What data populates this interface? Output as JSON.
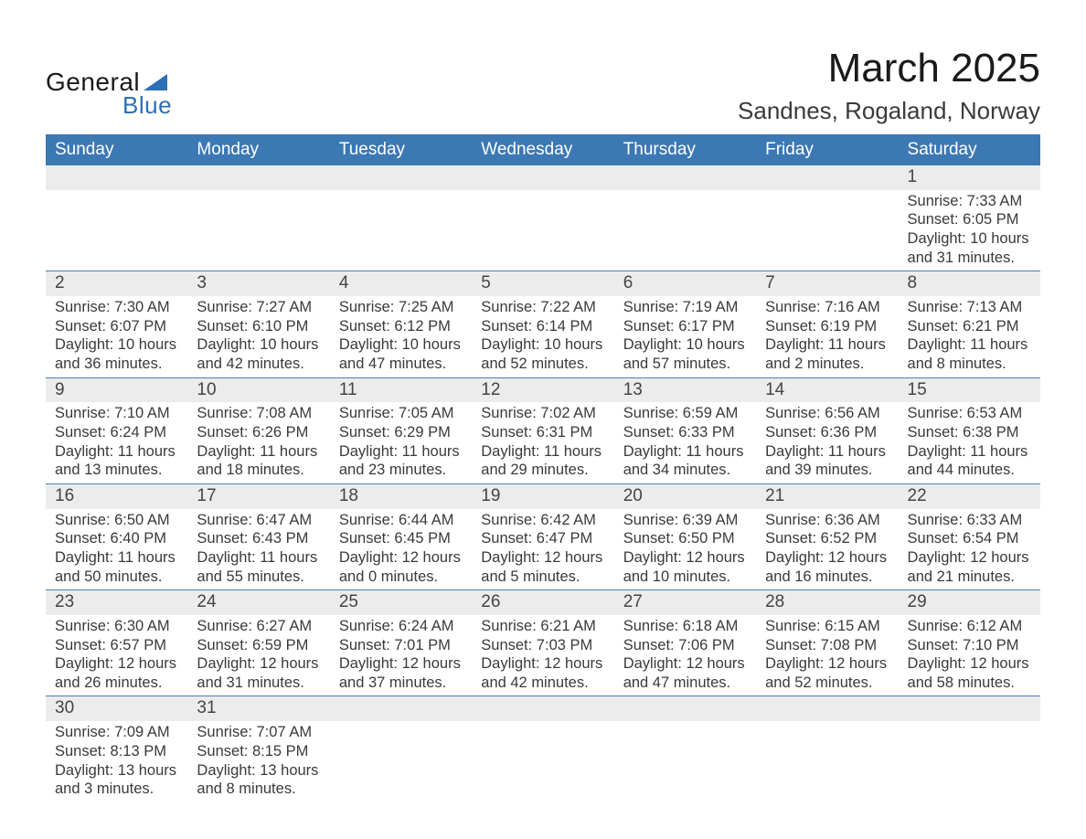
{
  "logo": {
    "text_main": "General",
    "text_sub": "Blue",
    "triangle_color": "#2d6fb5"
  },
  "title": "March 2025",
  "location": "Sandnes, Rogaland, Norway",
  "colors": {
    "header_bg": "#3c78b4",
    "header_text": "#ffffff",
    "daynum_bg": "#ececec",
    "body_text": "#3a3a3a",
    "rule": "#4a7fb8"
  },
  "fonts": {
    "title_pt": 44,
    "location_pt": 26,
    "header_pt": 19,
    "daynum_pt": 19,
    "body_pt": 16.5
  },
  "day_headers": [
    "Sunday",
    "Monday",
    "Tuesday",
    "Wednesday",
    "Thursday",
    "Friday",
    "Saturday"
  ],
  "labels": {
    "sunrise": "Sunrise: ",
    "sunset": "Sunset: ",
    "daylight_prefix": "Daylight: "
  },
  "weeks": [
    [
      null,
      null,
      null,
      null,
      null,
      null,
      {
        "n": 1,
        "sr": "7:33 AM",
        "ss": "6:05 PM",
        "dl": "10 hours and 31 minutes."
      }
    ],
    [
      {
        "n": 2,
        "sr": "7:30 AM",
        "ss": "6:07 PM",
        "dl": "10 hours and 36 minutes."
      },
      {
        "n": 3,
        "sr": "7:27 AM",
        "ss": "6:10 PM",
        "dl": "10 hours and 42 minutes."
      },
      {
        "n": 4,
        "sr": "7:25 AM",
        "ss": "6:12 PM",
        "dl": "10 hours and 47 minutes."
      },
      {
        "n": 5,
        "sr": "7:22 AM",
        "ss": "6:14 PM",
        "dl": "10 hours and 52 minutes."
      },
      {
        "n": 6,
        "sr": "7:19 AM",
        "ss": "6:17 PM",
        "dl": "10 hours and 57 minutes."
      },
      {
        "n": 7,
        "sr": "7:16 AM",
        "ss": "6:19 PM",
        "dl": "11 hours and 2 minutes."
      },
      {
        "n": 8,
        "sr": "7:13 AM",
        "ss": "6:21 PM",
        "dl": "11 hours and 8 minutes."
      }
    ],
    [
      {
        "n": 9,
        "sr": "7:10 AM",
        "ss": "6:24 PM",
        "dl": "11 hours and 13 minutes."
      },
      {
        "n": 10,
        "sr": "7:08 AM",
        "ss": "6:26 PM",
        "dl": "11 hours and 18 minutes."
      },
      {
        "n": 11,
        "sr": "7:05 AM",
        "ss": "6:29 PM",
        "dl": "11 hours and 23 minutes."
      },
      {
        "n": 12,
        "sr": "7:02 AM",
        "ss": "6:31 PM",
        "dl": "11 hours and 29 minutes."
      },
      {
        "n": 13,
        "sr": "6:59 AM",
        "ss": "6:33 PM",
        "dl": "11 hours and 34 minutes."
      },
      {
        "n": 14,
        "sr": "6:56 AM",
        "ss": "6:36 PM",
        "dl": "11 hours and 39 minutes."
      },
      {
        "n": 15,
        "sr": "6:53 AM",
        "ss": "6:38 PM",
        "dl": "11 hours and 44 minutes."
      }
    ],
    [
      {
        "n": 16,
        "sr": "6:50 AM",
        "ss": "6:40 PM",
        "dl": "11 hours and 50 minutes."
      },
      {
        "n": 17,
        "sr": "6:47 AM",
        "ss": "6:43 PM",
        "dl": "11 hours and 55 minutes."
      },
      {
        "n": 18,
        "sr": "6:44 AM",
        "ss": "6:45 PM",
        "dl": "12 hours and 0 minutes."
      },
      {
        "n": 19,
        "sr": "6:42 AM",
        "ss": "6:47 PM",
        "dl": "12 hours and 5 minutes."
      },
      {
        "n": 20,
        "sr": "6:39 AM",
        "ss": "6:50 PM",
        "dl": "12 hours and 10 minutes."
      },
      {
        "n": 21,
        "sr": "6:36 AM",
        "ss": "6:52 PM",
        "dl": "12 hours and 16 minutes."
      },
      {
        "n": 22,
        "sr": "6:33 AM",
        "ss": "6:54 PM",
        "dl": "12 hours and 21 minutes."
      }
    ],
    [
      {
        "n": 23,
        "sr": "6:30 AM",
        "ss": "6:57 PM",
        "dl": "12 hours and 26 minutes."
      },
      {
        "n": 24,
        "sr": "6:27 AM",
        "ss": "6:59 PM",
        "dl": "12 hours and 31 minutes."
      },
      {
        "n": 25,
        "sr": "6:24 AM",
        "ss": "7:01 PM",
        "dl": "12 hours and 37 minutes."
      },
      {
        "n": 26,
        "sr": "6:21 AM",
        "ss": "7:03 PM",
        "dl": "12 hours and 42 minutes."
      },
      {
        "n": 27,
        "sr": "6:18 AM",
        "ss": "7:06 PM",
        "dl": "12 hours and 47 minutes."
      },
      {
        "n": 28,
        "sr": "6:15 AM",
        "ss": "7:08 PM",
        "dl": "12 hours and 52 minutes."
      },
      {
        "n": 29,
        "sr": "6:12 AM",
        "ss": "7:10 PM",
        "dl": "12 hours and 58 minutes."
      }
    ],
    [
      {
        "n": 30,
        "sr": "7:09 AM",
        "ss": "8:13 PM",
        "dl": "13 hours and 3 minutes."
      },
      {
        "n": 31,
        "sr": "7:07 AM",
        "ss": "8:15 PM",
        "dl": "13 hours and 8 minutes."
      },
      null,
      null,
      null,
      null,
      null
    ]
  ]
}
